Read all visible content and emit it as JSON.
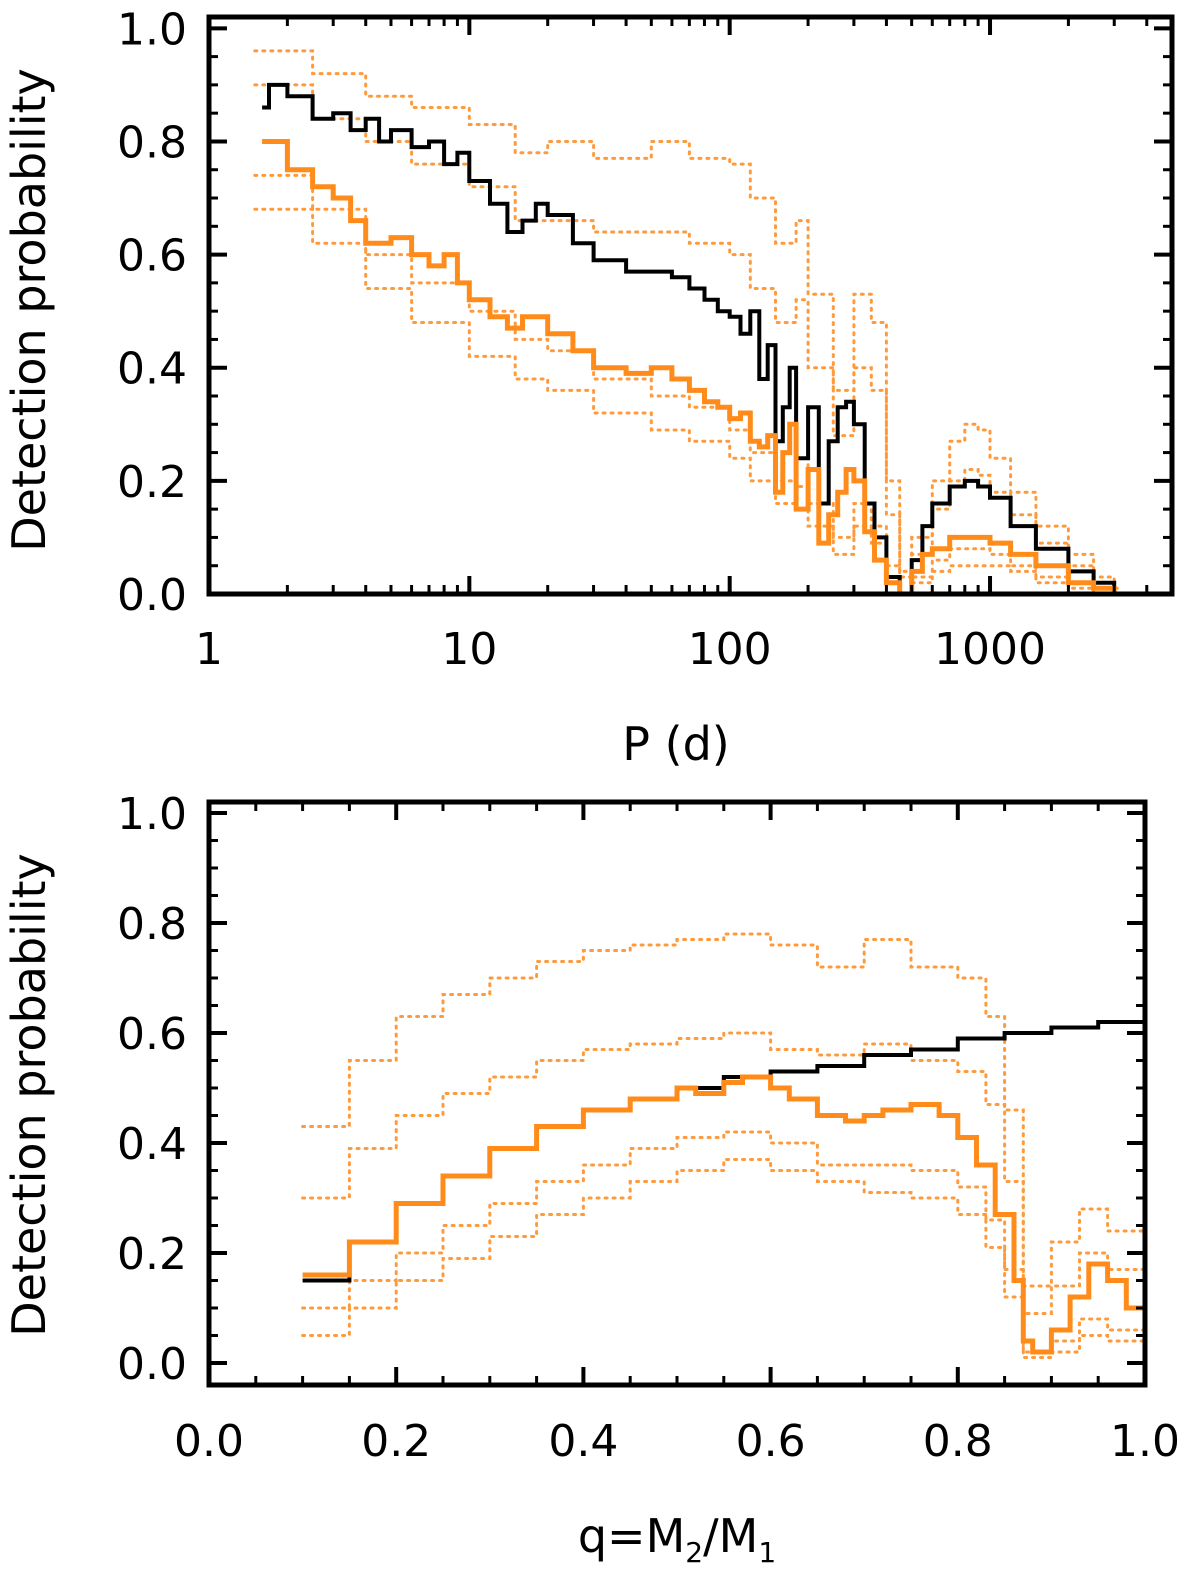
{
  "colors": {
    "background": "#ffffff",
    "axis": "#000000",
    "black_series": "#000000",
    "orange_series": "#ff8c1a",
    "orange_envelope": "#ff9a3c"
  },
  "chart_data": [
    {
      "type": "line",
      "panel": "top",
      "xlabel": "P (d)",
      "ylabel": "Detection  probability",
      "xscale": "log",
      "xlim": [
        1,
        5000
      ],
      "ylim": [
        0,
        1.02
      ],
      "xticks": [
        1,
        10,
        100,
        1000
      ],
      "xtick_labels": [
        "1",
        "10",
        "100",
        "1000"
      ],
      "yticks": [
        0,
        0.2,
        0.4,
        0.6,
        0.8,
        1.0
      ],
      "ytick_labels": [
        "0.0",
        "0.2",
        "0.4",
        "0.6",
        "0.8",
        "1.0"
      ],
      "grid": false,
      "series": [
        {
          "role": "main",
          "color": "#000000",
          "style": "solid-step",
          "x": [
            1.6,
            1.7,
            2.0,
            2.5,
            3.0,
            3.5,
            4.0,
            4.5,
            5.0,
            6.0,
            7.0,
            8.0,
            9.0,
            10,
            12,
            14,
            16,
            18,
            20,
            25,
            30,
            40,
            50,
            60,
            70,
            80,
            90,
            100,
            110,
            120,
            130,
            140,
            150,
            160,
            170,
            180,
            200,
            220,
            240,
            260,
            280,
            300,
            330,
            360,
            400,
            450,
            500,
            550,
            600,
            700,
            800,
            900,
            1000,
            1200,
            1500,
            2000,
            2500,
            3000
          ],
          "y": [
            0.86,
            0.9,
            0.88,
            0.84,
            0.85,
            0.82,
            0.84,
            0.8,
            0.82,
            0.79,
            0.8,
            0.76,
            0.78,
            0.73,
            0.69,
            0.64,
            0.66,
            0.69,
            0.67,
            0.62,
            0.59,
            0.57,
            0.57,
            0.56,
            0.54,
            0.52,
            0.5,
            0.49,
            0.46,
            0.5,
            0.38,
            0.44,
            0.27,
            0.33,
            0.4,
            0.24,
            0.33,
            0.16,
            0.27,
            0.33,
            0.34,
            0.3,
            0.16,
            0.1,
            0.03,
            0.0,
            0.06,
            0.12,
            0.16,
            0.19,
            0.2,
            0.19,
            0.17,
            0.12,
            0.08,
            0.04,
            0.02,
            0.0
          ]
        },
        {
          "role": "main",
          "color": "#ff8c1a",
          "style": "solid-step",
          "x": [
            1.6,
            2.0,
            2.5,
            3.0,
            3.5,
            4.0,
            5.0,
            6.0,
            7.0,
            8.0,
            9.0,
            10,
            12,
            14,
            16,
            20,
            25,
            30,
            40,
            50,
            60,
            70,
            80,
            90,
            100,
            110,
            120,
            130,
            140,
            150,
            160,
            170,
            180,
            200,
            220,
            240,
            260,
            280,
            300,
            330,
            360,
            400,
            450,
            500,
            550,
            600,
            700,
            800,
            900,
            1000,
            1200,
            1500,
            2000,
            2500,
            3000
          ],
          "y": [
            0.8,
            0.75,
            0.72,
            0.7,
            0.66,
            0.62,
            0.63,
            0.6,
            0.58,
            0.6,
            0.55,
            0.52,
            0.49,
            0.47,
            0.49,
            0.46,
            0.43,
            0.4,
            0.39,
            0.4,
            0.38,
            0.36,
            0.34,
            0.33,
            0.31,
            0.32,
            0.27,
            0.26,
            0.28,
            0.18,
            0.25,
            0.3,
            0.15,
            0.22,
            0.09,
            0.14,
            0.18,
            0.22,
            0.2,
            0.11,
            0.06,
            0.02,
            0.0,
            0.04,
            0.07,
            0.08,
            0.1,
            0.1,
            0.1,
            0.09,
            0.07,
            0.05,
            0.02,
            0.01,
            0.0
          ]
        },
        {
          "role": "envelope",
          "color": "#ff9a3c",
          "style": "dotted-step",
          "x": [
            1.5,
            2.5,
            4,
            6,
            10,
            15,
            20,
            30,
            50,
            70,
            100,
            120,
            150,
            180,
            200,
            250,
            300,
            350,
            400,
            450,
            500,
            600,
            700,
            800,
            900,
            1000,
            1200,
            1500,
            2000,
            2500,
            3000
          ],
          "y": [
            0.96,
            0.92,
            0.88,
            0.86,
            0.83,
            0.78,
            0.8,
            0.77,
            0.8,
            0.77,
            0.76,
            0.7,
            0.62,
            0.66,
            0.53,
            0.36,
            0.53,
            0.48,
            0.2,
            0.04,
            0.1,
            0.2,
            0.27,
            0.3,
            0.29,
            0.24,
            0.18,
            0.12,
            0.07,
            0.03,
            0.01
          ]
        },
        {
          "role": "envelope",
          "color": "#ff9a3c",
          "style": "dotted-step",
          "x": [
            1.5,
            2.5,
            4,
            6,
            10,
            15,
            20,
            30,
            50,
            70,
            100,
            120,
            150,
            180,
            200,
            250,
            300,
            350,
            400,
            450,
            500,
            600,
            700,
            800,
            900,
            1000,
            1200,
            1500,
            2000,
            2500,
            3000
          ],
          "y": [
            0.9,
            0.84,
            0.8,
            0.76,
            0.72,
            0.66,
            0.66,
            0.64,
            0.64,
            0.62,
            0.6,
            0.54,
            0.48,
            0.52,
            0.4,
            0.28,
            0.4,
            0.36,
            0.14,
            0.03,
            0.07,
            0.15,
            0.2,
            0.22,
            0.21,
            0.18,
            0.14,
            0.09,
            0.05,
            0.02,
            0.01
          ]
        },
        {
          "role": "envelope",
          "color": "#ff9a3c",
          "style": "dotted-step",
          "x": [
            1.5,
            2.5,
            4,
            6,
            10,
            15,
            20,
            30,
            50,
            70,
            100,
            120,
            150,
            180,
            200,
            250,
            300,
            350,
            400,
            450,
            500,
            600,
            700,
            800,
            900,
            1000,
            1200,
            1500,
            2000,
            2500,
            3000
          ],
          "y": [
            0.74,
            0.68,
            0.6,
            0.55,
            0.5,
            0.45,
            0.43,
            0.38,
            0.35,
            0.33,
            0.29,
            0.25,
            0.2,
            0.24,
            0.16,
            0.1,
            0.16,
            0.12,
            0.05,
            0.0,
            0.03,
            0.06,
            0.08,
            0.08,
            0.08,
            0.07,
            0.05,
            0.03,
            0.02,
            0.01,
            0.0
          ]
        },
        {
          "role": "envelope",
          "color": "#ff9a3c",
          "style": "dotted-step",
          "x": [
            1.5,
            2.5,
            4,
            6,
            10,
            15,
            20,
            30,
            50,
            70,
            100,
            120,
            150,
            180,
            200,
            250,
            300,
            350,
            400,
            450,
            500,
            600,
            700,
            800,
            900,
            1000,
            1200,
            1500,
            2000,
            2500,
            3000
          ],
          "y": [
            0.68,
            0.62,
            0.54,
            0.48,
            0.42,
            0.38,
            0.36,
            0.32,
            0.29,
            0.27,
            0.24,
            0.2,
            0.16,
            0.19,
            0.12,
            0.07,
            0.12,
            0.09,
            0.03,
            0.0,
            0.02,
            0.04,
            0.05,
            0.05,
            0.05,
            0.05,
            0.04,
            0.02,
            0.01,
            0.0,
            0.0
          ]
        }
      ]
    },
    {
      "type": "line",
      "panel": "bottom",
      "xlabel_main": "q=M",
      "xlabel_sub1": "2",
      "xlabel_mid": "/M",
      "xlabel_sub2": "1",
      "ylabel": "Detection  probability",
      "xscale": "linear",
      "xlim": [
        0,
        1
      ],
      "ylim": [
        -0.04,
        1.02
      ],
      "xticks": [
        0,
        0.2,
        0.4,
        0.6,
        0.8,
        1.0
      ],
      "xtick_labels": [
        "0.0",
        "0.2",
        "0.4",
        "0.6",
        "0.8",
        "1.0"
      ],
      "yticks": [
        0,
        0.2,
        0.4,
        0.6,
        0.8,
        1.0
      ],
      "ytick_labels": [
        "0.0",
        "0.2",
        "0.4",
        "0.6",
        "0.8",
        "1.0"
      ],
      "grid": false,
      "series": [
        {
          "role": "main",
          "color": "#000000",
          "style": "solid-step",
          "x": [
            0.1,
            0.15,
            0.2,
            0.25,
            0.3,
            0.35,
            0.4,
            0.45,
            0.5,
            0.55,
            0.6,
            0.65,
            0.7,
            0.75,
            0.8,
            0.85,
            0.9,
            0.95,
            1.0
          ],
          "y": [
            0.15,
            0.22,
            0.29,
            0.34,
            0.39,
            0.43,
            0.46,
            0.48,
            0.5,
            0.52,
            0.53,
            0.54,
            0.56,
            0.57,
            0.59,
            0.6,
            0.61,
            0.62,
            0.62
          ]
        },
        {
          "role": "main",
          "color": "#ff8c1a",
          "style": "solid-step",
          "x": [
            0.1,
            0.15,
            0.2,
            0.25,
            0.3,
            0.35,
            0.4,
            0.45,
            0.5,
            0.52,
            0.55,
            0.57,
            0.6,
            0.62,
            0.65,
            0.68,
            0.7,
            0.72,
            0.75,
            0.78,
            0.8,
            0.82,
            0.84,
            0.86,
            0.87,
            0.88,
            0.9,
            0.92,
            0.94,
            0.96,
            0.98,
            1.0
          ],
          "y": [
            0.16,
            0.22,
            0.29,
            0.34,
            0.39,
            0.43,
            0.46,
            0.48,
            0.5,
            0.49,
            0.51,
            0.52,
            0.5,
            0.48,
            0.45,
            0.44,
            0.45,
            0.46,
            0.47,
            0.45,
            0.41,
            0.36,
            0.27,
            0.15,
            0.04,
            0.02,
            0.06,
            0.12,
            0.18,
            0.15,
            0.1,
            0.07
          ]
        },
        {
          "role": "envelope",
          "color": "#ff9a3c",
          "style": "dotted-step",
          "x": [
            0.1,
            0.15,
            0.2,
            0.25,
            0.3,
            0.35,
            0.4,
            0.45,
            0.5,
            0.55,
            0.6,
            0.65,
            0.7,
            0.75,
            0.8,
            0.83,
            0.85,
            0.87,
            0.9,
            0.93,
            0.96,
            1.0
          ],
          "y": [
            0.43,
            0.55,
            0.63,
            0.67,
            0.7,
            0.73,
            0.75,
            0.76,
            0.77,
            0.78,
            0.76,
            0.72,
            0.77,
            0.72,
            0.7,
            0.63,
            0.46,
            0.14,
            0.22,
            0.28,
            0.24,
            0.18
          ]
        },
        {
          "role": "envelope",
          "color": "#ff9a3c",
          "style": "dotted-step",
          "x": [
            0.1,
            0.15,
            0.2,
            0.25,
            0.3,
            0.35,
            0.4,
            0.45,
            0.5,
            0.55,
            0.6,
            0.65,
            0.7,
            0.75,
            0.8,
            0.83,
            0.85,
            0.87,
            0.9,
            0.93,
            0.96,
            1.0
          ],
          "y": [
            0.3,
            0.39,
            0.45,
            0.49,
            0.52,
            0.55,
            0.57,
            0.58,
            0.59,
            0.6,
            0.57,
            0.56,
            0.58,
            0.55,
            0.53,
            0.47,
            0.33,
            0.09,
            0.14,
            0.2,
            0.17,
            0.12
          ]
        },
        {
          "role": "envelope",
          "color": "#ff9a3c",
          "style": "dotted-step",
          "x": [
            0.1,
            0.15,
            0.2,
            0.25,
            0.3,
            0.35,
            0.4,
            0.45,
            0.5,
            0.55,
            0.6,
            0.65,
            0.7,
            0.75,
            0.8,
            0.83,
            0.85,
            0.87,
            0.9,
            0.93,
            0.96,
            1.0
          ],
          "y": [
            0.1,
            0.15,
            0.2,
            0.25,
            0.29,
            0.33,
            0.36,
            0.39,
            0.41,
            0.42,
            0.4,
            0.36,
            0.36,
            0.35,
            0.32,
            0.26,
            0.17,
            0.02,
            0.04,
            0.08,
            0.06,
            0.03
          ]
        },
        {
          "role": "envelope",
          "color": "#ff9a3c",
          "style": "dotted-step",
          "x": [
            0.1,
            0.15,
            0.2,
            0.25,
            0.3,
            0.35,
            0.4,
            0.45,
            0.5,
            0.55,
            0.6,
            0.65,
            0.7,
            0.75,
            0.8,
            0.83,
            0.85,
            0.87,
            0.9,
            0.93,
            0.96,
            1.0
          ],
          "y": [
            0.05,
            0.1,
            0.15,
            0.19,
            0.23,
            0.27,
            0.3,
            0.33,
            0.35,
            0.37,
            0.35,
            0.33,
            0.31,
            0.3,
            0.27,
            0.21,
            0.12,
            0.01,
            0.02,
            0.05,
            0.04,
            0.02
          ]
        }
      ]
    }
  ]
}
